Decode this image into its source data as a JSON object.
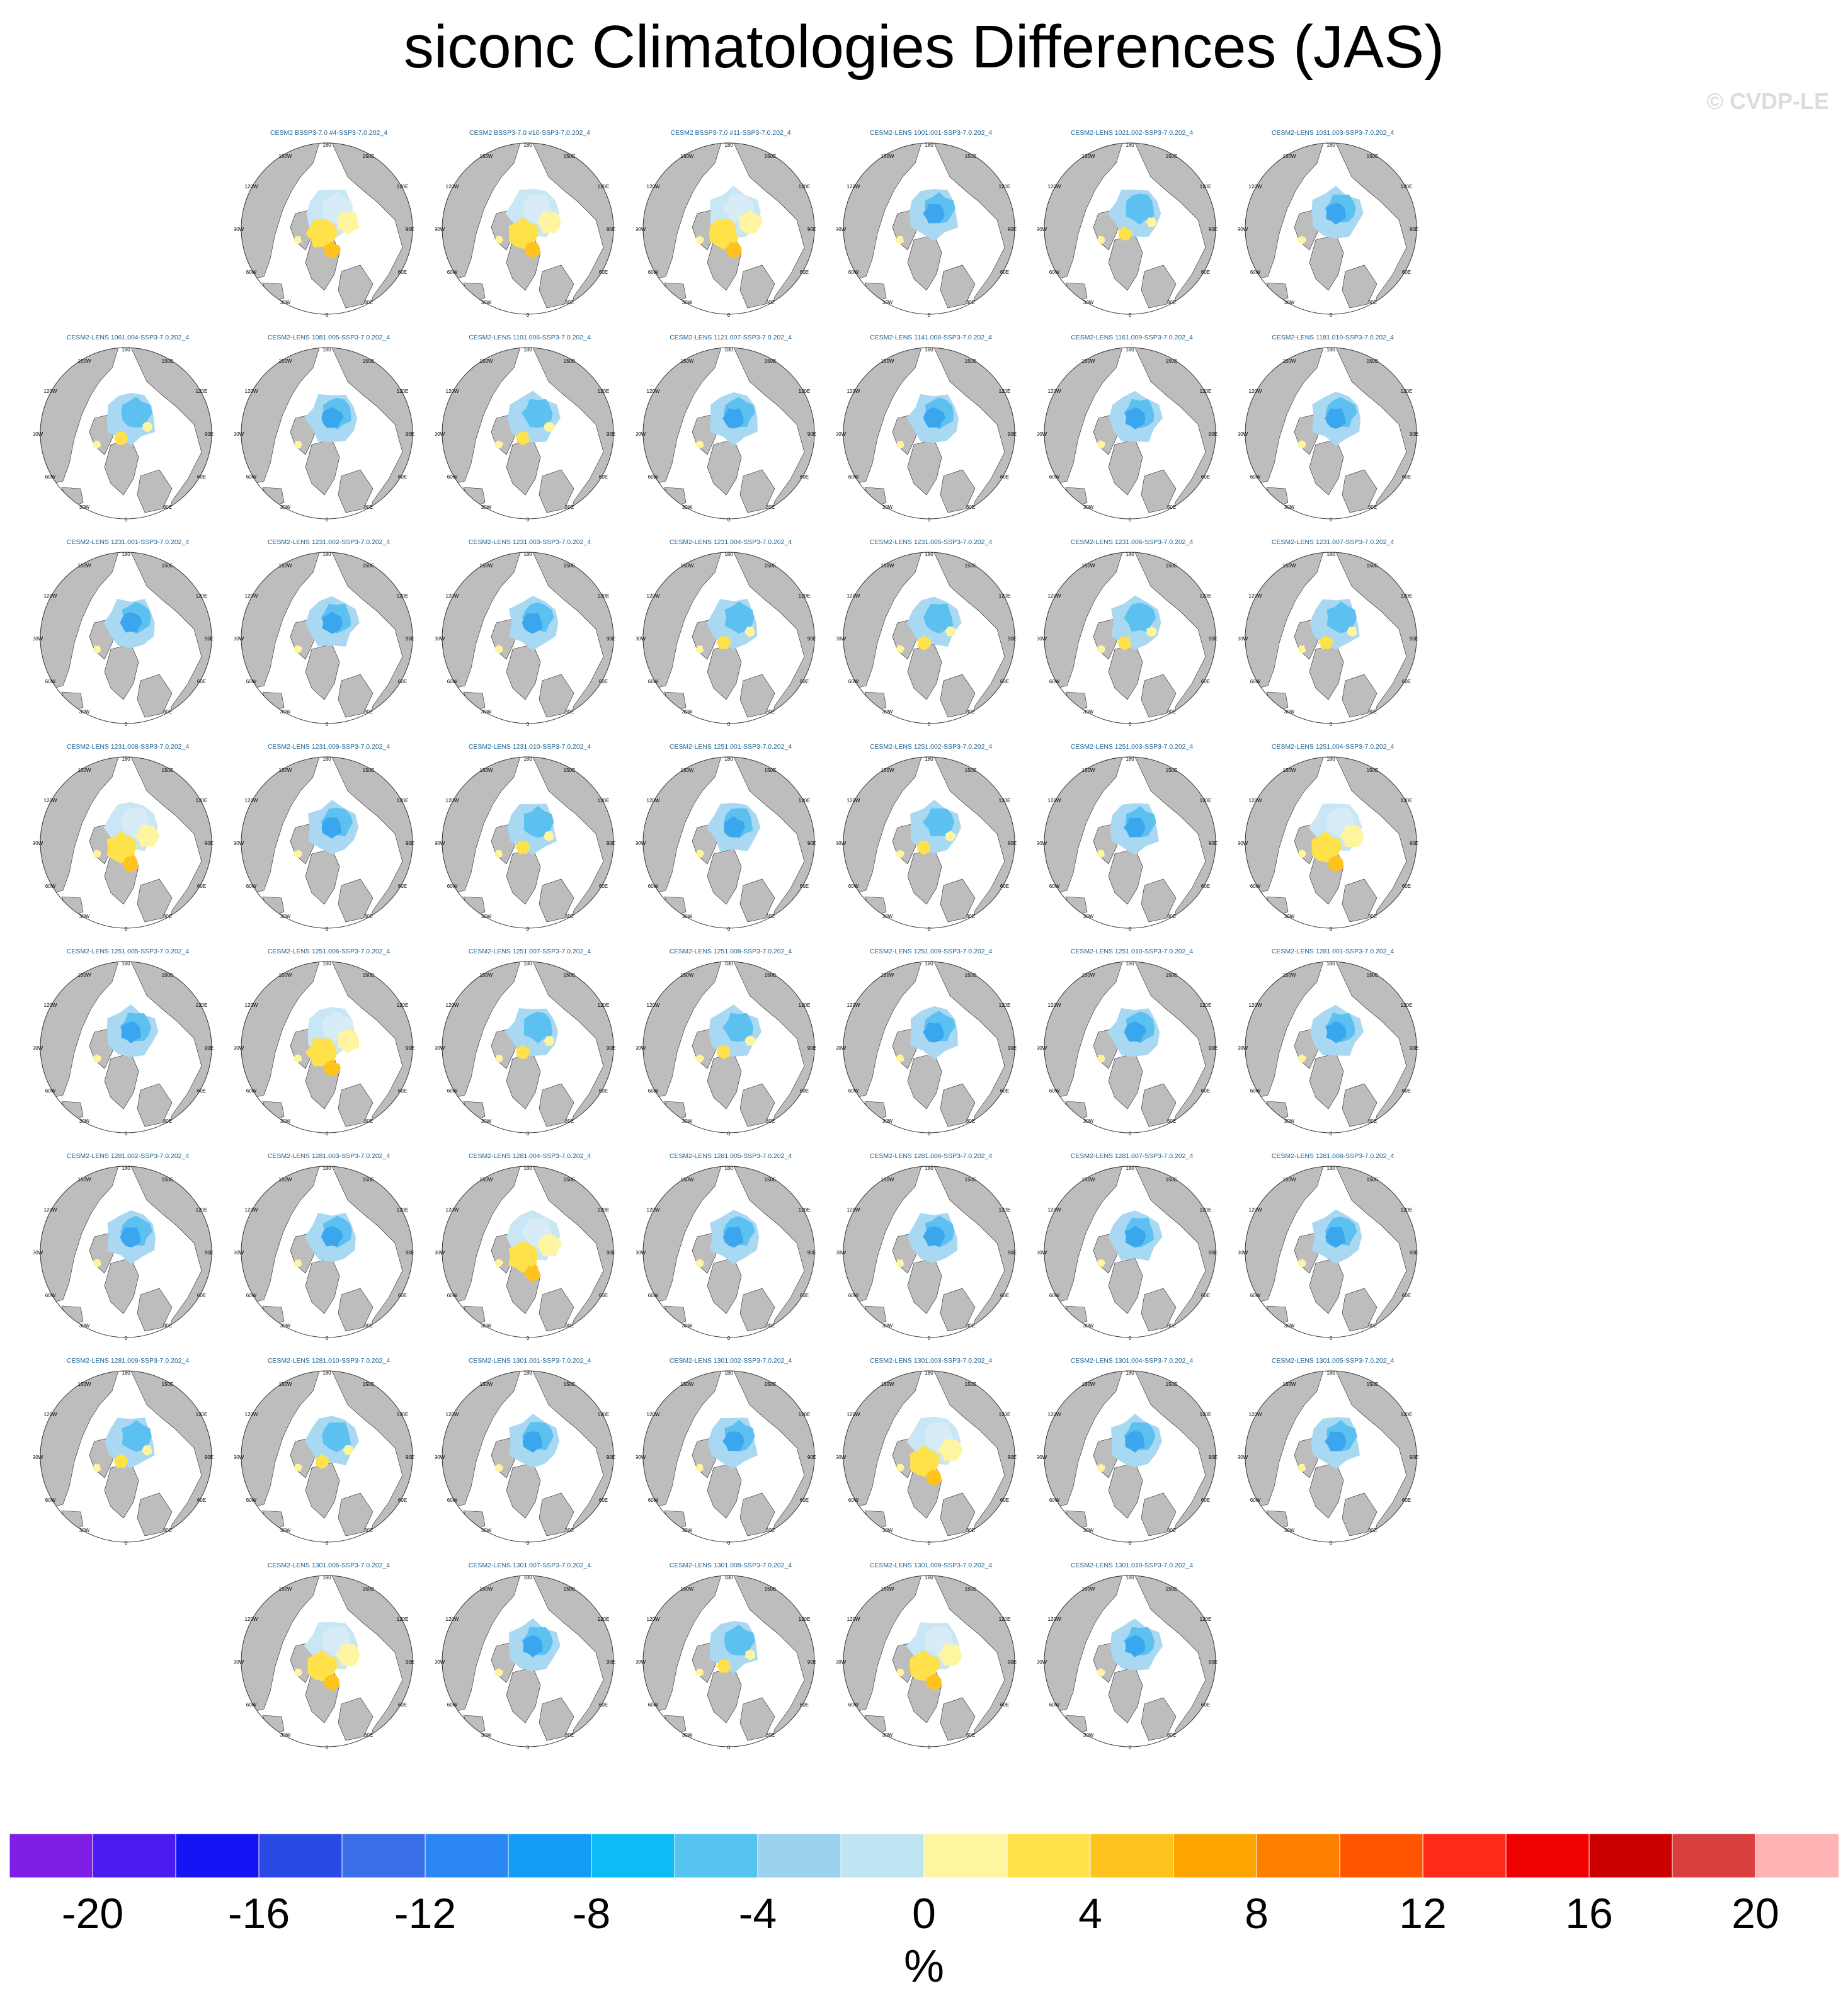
{
  "title": "siconc Climatologies Differences (JAS)",
  "watermark": "© CVDP-LE",
  "chart_data": {
    "type": "heatmap",
    "projection": "north polar stereographic",
    "title": "siconc Climatologies Differences (JAS)",
    "units": "%",
    "colorbar": {
      "tick_labels": [
        "-20",
        "-16",
        "-12",
        "-8",
        "-4",
        "0",
        "4",
        "8",
        "12",
        "16",
        "20"
      ],
      "tick_values": [
        -20,
        -16,
        -12,
        -8,
        -4,
        0,
        4,
        8,
        12,
        16,
        20
      ],
      "colors": [
        "#7f1ee6",
        "#4a1cf2",
        "#1414f5",
        "#2a4ae6",
        "#3a6ee6",
        "#2b87f2",
        "#139df5",
        "#0bbcf5",
        "#55c4f0",
        "#9dd2ee",
        "#bfe4f2",
        "#fff5a0",
        "#ffe24a",
        "#ffc31e",
        "#ffa500",
        "#ff8000",
        "#ff5500",
        "#ff2a1a",
        "#f00000",
        "#cc0000",
        "#d93f3f",
        "#ffb3b3"
      ],
      "placement": "bottom"
    },
    "map_axis_labels": [
      "180",
      "150W",
      "150E",
      "120W",
      "120E",
      "90W",
      "90E",
      "60W",
      "60E",
      "30W",
      "30E",
      "0"
    ],
    "panels": [
      {
        "title": "CESM2 BSSP3-7.0 #4-SSP3-7.0.202_4",
        "row": 0,
        "col": 1,
        "pattern": "yellow"
      },
      {
        "title": "CESM2 BSSP3-7.0 #10-SSP3-7.0.202_4",
        "row": 0,
        "col": 2,
        "pattern": "yellow"
      },
      {
        "title": "CESM2 BSSP3-7.0 #11-SSP3-7.0.202_4",
        "row": 0,
        "col": 3,
        "pattern": "yellow"
      },
      {
        "title": "CESM2-LENS 1001.001-SSP3-7.0.202_4",
        "row": 0,
        "col": 4,
        "pattern": "blue"
      },
      {
        "title": "CESM2-LENS 1021.002-SSP3-7.0.202_4",
        "row": 0,
        "col": 5,
        "pattern": "mixed"
      },
      {
        "title": "CESM2-LENS 1031.003-SSP3-7.0.202_4",
        "row": 0,
        "col": 6,
        "pattern": "blue"
      },
      {
        "title": "CESM2-LENS 1061.004-SSP3-7.0.202_4",
        "row": 1,
        "col": 0,
        "pattern": "mixed"
      },
      {
        "title": "CESM2-LENS 1081.005-SSP3-7.0.202_4",
        "row": 1,
        "col": 1,
        "pattern": "blue"
      },
      {
        "title": "CESM2-LENS 1101.006-SSP3-7.0.202_4",
        "row": 1,
        "col": 2,
        "pattern": "mixed"
      },
      {
        "title": "CESM2-LENS 1121.007-SSP3-7.0.202_4",
        "row": 1,
        "col": 3,
        "pattern": "blue"
      },
      {
        "title": "CESM2-LENS 1141.008-SSP3-7.0.202_4",
        "row": 1,
        "col": 4,
        "pattern": "blue"
      },
      {
        "title": "CESM2-LENS 1161.009-SSP3-7.0.202_4",
        "row": 1,
        "col": 5,
        "pattern": "blue"
      },
      {
        "title": "CESM2-LENS 1181.010-SSP3-7.0.202_4",
        "row": 1,
        "col": 6,
        "pattern": "blue"
      },
      {
        "title": "CESM2-LENS 1231.001-SSP3-7.0.202_4",
        "row": 2,
        "col": 0,
        "pattern": "blue"
      },
      {
        "title": "CESM2-LENS 1231.002-SSP3-7.0.202_4",
        "row": 2,
        "col": 1,
        "pattern": "blue"
      },
      {
        "title": "CESM2-LENS 1231.003-SSP3-7.0.202_4",
        "row": 2,
        "col": 2,
        "pattern": "blue"
      },
      {
        "title": "CESM2-LENS 1231.004-SSP3-7.0.202_4",
        "row": 2,
        "col": 3,
        "pattern": "mixed"
      },
      {
        "title": "CESM2-LENS 1231.005-SSP3-7.0.202_4",
        "row": 2,
        "col": 4,
        "pattern": "mixed"
      },
      {
        "title": "CESM2-LENS 1231.006-SSP3-7.0.202_4",
        "row": 2,
        "col": 5,
        "pattern": "mixed"
      },
      {
        "title": "CESM2-LENS 1231.007-SSP3-7.0.202_4",
        "row": 2,
        "col": 6,
        "pattern": "mixed"
      },
      {
        "title": "CESM2-LENS 1231.008-SSP3-7.0.202_4",
        "row": 3,
        "col": 0,
        "pattern": "yellow"
      },
      {
        "title": "CESM2-LENS 1231.009-SSP3-7.0.202_4",
        "row": 3,
        "col": 1,
        "pattern": "blue"
      },
      {
        "title": "CESM2-LENS 1231.010-SSP3-7.0.202_4",
        "row": 3,
        "col": 2,
        "pattern": "mixed"
      },
      {
        "title": "CESM2-LENS 1251.001-SSP3-7.0.202_4",
        "row": 3,
        "col": 3,
        "pattern": "blue"
      },
      {
        "title": "CESM2-LENS 1251.002-SSP3-7.0.202_4",
        "row": 3,
        "col": 4,
        "pattern": "mixed"
      },
      {
        "title": "CESM2-LENS 1251.003-SSP3-7.0.202_4",
        "row": 3,
        "col": 5,
        "pattern": "blue"
      },
      {
        "title": "CESM2-LENS 1251.004-SSP3-7.0.202_4",
        "row": 3,
        "col": 6,
        "pattern": "yellow"
      },
      {
        "title": "CESM2-LENS 1251.005-SSP3-7.0.202_4",
        "row": 4,
        "col": 0,
        "pattern": "blue"
      },
      {
        "title": "CESM2-LENS 1251.006-SSP3-7.0.202_4",
        "row": 4,
        "col": 1,
        "pattern": "yellow"
      },
      {
        "title": "CESM2-LENS 1251.007-SSP3-7.0.202_4",
        "row": 4,
        "col": 2,
        "pattern": "mixed"
      },
      {
        "title": "CESM2-LENS 1251.008-SSP3-7.0.202_4",
        "row": 4,
        "col": 3,
        "pattern": "mixed"
      },
      {
        "title": "CESM2-LENS 1251.009-SSP3-7.0.202_4",
        "row": 4,
        "col": 4,
        "pattern": "blue"
      },
      {
        "title": "CESM2-LENS 1251.010-SSP3-7.0.202_4",
        "row": 4,
        "col": 5,
        "pattern": "blue"
      },
      {
        "title": "CESM2-LENS 1281.001-SSP3-7.0.202_4",
        "row": 4,
        "col": 6,
        "pattern": "blue"
      },
      {
        "title": "CESM2-LENS 1281.002-SSP3-7.0.202_4",
        "row": 5,
        "col": 0,
        "pattern": "blue"
      },
      {
        "title": "CESM2-LENS 1281.003-SSP3-7.0.202_4",
        "row": 5,
        "col": 1,
        "pattern": "blue"
      },
      {
        "title": "CESM2-LENS 1281.004-SSP3-7.0.202_4",
        "row": 5,
        "col": 2,
        "pattern": "yellow"
      },
      {
        "title": "CESM2-LENS 1281.005-SSP3-7.0.202_4",
        "row": 5,
        "col": 3,
        "pattern": "blue"
      },
      {
        "title": "CESM2-LENS 1281.006-SSP3-7.0.202_4",
        "row": 5,
        "col": 4,
        "pattern": "blue"
      },
      {
        "title": "CESM2-LENS 1281.007-SSP3-7.0.202_4",
        "row": 5,
        "col": 5,
        "pattern": "blue"
      },
      {
        "title": "CESM2-LENS 1281.008-SSP3-7.0.202_4",
        "row": 5,
        "col": 6,
        "pattern": "blue"
      },
      {
        "title": "CESM2-LENS 1281.009-SSP3-7.0.202_4",
        "row": 6,
        "col": 0,
        "pattern": "mixed"
      },
      {
        "title": "CESM2-LENS 1281.010-SSP3-7.0.202_4",
        "row": 6,
        "col": 1,
        "pattern": "mixed"
      },
      {
        "title": "CESM2-LENS 1301.001-SSP3-7.0.202_4",
        "row": 6,
        "col": 2,
        "pattern": "blue"
      },
      {
        "title": "CESM2-LENS 1301.002-SSP3-7.0.202_4",
        "row": 6,
        "col": 3,
        "pattern": "blue"
      },
      {
        "title": "CESM2-LENS 1301.003-SSP3-7.0.202_4",
        "row": 6,
        "col": 4,
        "pattern": "yellow"
      },
      {
        "title": "CESM2-LENS 1301.004-SSP3-7.0.202_4",
        "row": 6,
        "col": 5,
        "pattern": "blue"
      },
      {
        "title": "CESM2-LENS 1301.005-SSP3-7.0.202_4",
        "row": 6,
        "col": 6,
        "pattern": "blue"
      },
      {
        "title": "CESM2-LENS 1301.006-SSP3-7.0.202_4",
        "row": 7,
        "col": 1,
        "pattern": "yellow"
      },
      {
        "title": "CESM2-LENS 1301.007-SSP3-7.0.202_4",
        "row": 7,
        "col": 2,
        "pattern": "blue"
      },
      {
        "title": "CESM2-LENS 1301.008-SSP3-7.0.202_4",
        "row": 7,
        "col": 3,
        "pattern": "mixed"
      },
      {
        "title": "CESM2-LENS 1301.009-SSP3-7.0.202_4",
        "row": 7,
        "col": 4,
        "pattern": "yellow"
      },
      {
        "title": "CESM2-LENS 1301.010-SSP3-7.0.202_4",
        "row": 7,
        "col": 5,
        "pattern": "blue"
      }
    ]
  }
}
